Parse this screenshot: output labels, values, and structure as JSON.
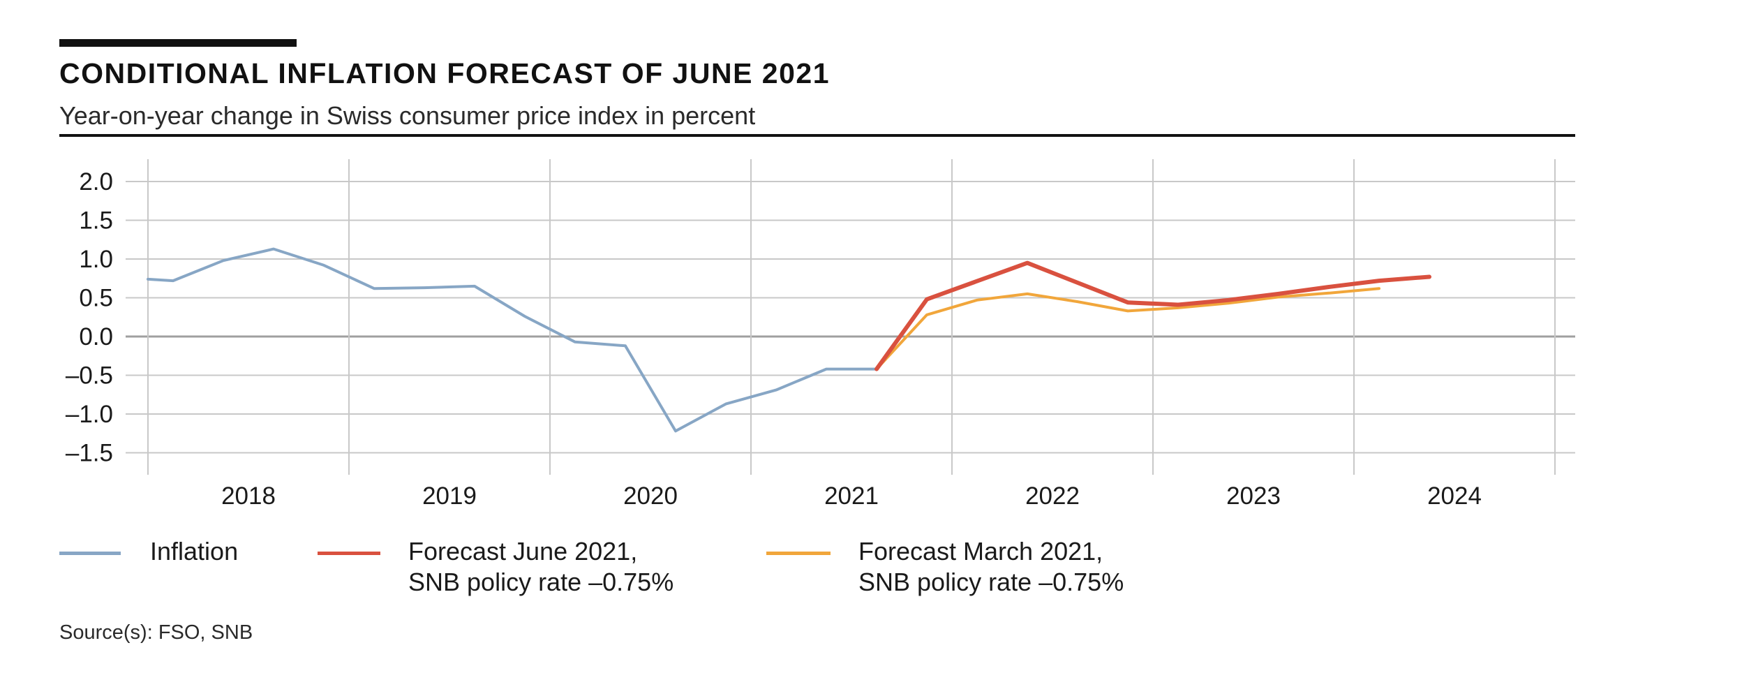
{
  "title": "CONDITIONAL INFLATION FORECAST OF JUNE 2021",
  "subtitle": "Year-on-year change in Swiss consumer price index in percent",
  "source": "Source(s): FSO, SNB",
  "legend": [
    {
      "line1": "Inflation",
      "line2": ""
    },
    {
      "line1": "Forecast June 2021,",
      "line2": "SNB policy rate –0.75%"
    },
    {
      "line1": "Forecast March 2021,",
      "line2": "SNB policy rate –0.75%"
    }
  ],
  "colors": {
    "inflation": "#87a6c5",
    "forecast_june": "#d9513f",
    "forecast_march": "#f1a63b",
    "grid": "#c8c8c8",
    "zero_line": "#a0a0a0"
  },
  "chart_data": {
    "type": "line",
    "title": "CONDITIONAL INFLATION FORECAST OF JUNE 2021",
    "subtitle": "Year-on-year change in Swiss consumer price index in percent",
    "xlabel": "",
    "ylabel": "",
    "x_axis": {
      "categories": [
        "2018",
        "2019",
        "2020",
        "2021",
        "2022",
        "2023",
        "2024"
      ],
      "unit": "quarters",
      "range": [
        2018.0,
        2025.0
      ]
    },
    "y_axis": {
      "ticks": [
        2.0,
        1.5,
        1.0,
        0.5,
        0.0,
        -0.5,
        -1.0,
        -1.5
      ],
      "tick_labels": [
        "2.0",
        "1.5",
        "1.0",
        "0.5",
        "0.0",
        "–0.5",
        "–1.0",
        "–1.5"
      ],
      "ylim": [
        -1.8,
        2.3
      ]
    },
    "grid": true,
    "legend_position": "bottom",
    "series": [
      {
        "name": "Inflation",
        "color": "#87a6c5",
        "x": [
          2018.0,
          2018.125,
          2018.375,
          2018.625,
          2018.875,
          2019.125,
          2019.375,
          2019.625,
          2019.875,
          2020.125,
          2020.375,
          2020.625,
          2020.875,
          2021.125,
          2021.375,
          2021.625
        ],
        "y": [
          0.74,
          0.72,
          0.98,
          1.13,
          0.92,
          0.62,
          0.63,
          0.65,
          0.26,
          -0.07,
          -0.12,
          -1.22,
          -0.87,
          -0.69,
          -0.42,
          -0.42
        ]
      },
      {
        "name": "Forecast June 2021, SNB policy rate –0.75%",
        "color": "#d9513f",
        "x": [
          2021.625,
          2021.875,
          2022.375,
          2022.875,
          2023.125,
          2023.375,
          2023.625,
          2023.875,
          2024.125,
          2024.375
        ],
        "y": [
          -0.42,
          0.48,
          0.95,
          0.44,
          0.41,
          0.47,
          0.55,
          0.64,
          0.72,
          0.77
        ]
      },
      {
        "name": "Forecast March 2021, SNB policy rate –0.75%",
        "color": "#f1a63b",
        "x": [
          2021.625,
          2021.875,
          2022.125,
          2022.375,
          2022.625,
          2022.875,
          2023.125,
          2023.375,
          2023.625,
          2023.875,
          2024.125
        ],
        "y": [
          -0.42,
          0.28,
          0.47,
          0.55,
          0.45,
          0.33,
          0.37,
          0.43,
          0.51,
          0.56,
          0.62
        ]
      }
    ]
  }
}
